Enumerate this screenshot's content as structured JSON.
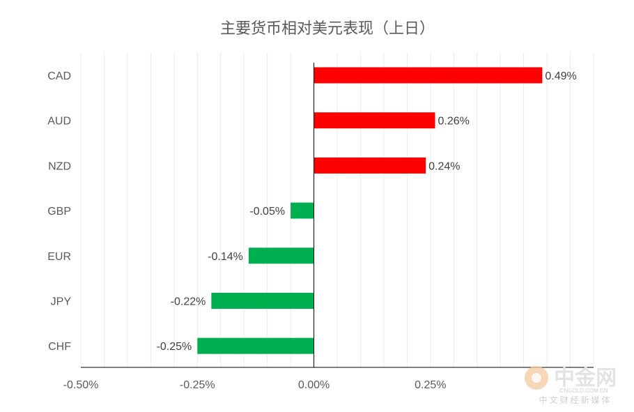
{
  "chart_data": {
    "type": "bar",
    "orientation": "horizontal",
    "title": "主要货币相对美元表现（上日）",
    "categories": [
      "CAD",
      "AUD",
      "NZD",
      "GBP",
      "EUR",
      "JPY",
      "CHF"
    ],
    "values": [
      0.49,
      0.26,
      0.24,
      -0.05,
      -0.14,
      -0.22,
      -0.25
    ],
    "data_labels": [
      "0.49%",
      "0.26%",
      "0.24%",
      "-0.05%",
      "-0.14%",
      "-0.22%",
      "-0.25%"
    ],
    "xlim": [
      -0.5,
      0.6
    ],
    "x_ticks": [
      -0.5,
      -0.25,
      0,
      0.25
    ],
    "x_tick_labels": [
      "-0.50%",
      "-0.25%",
      "0.00%",
      "0.25%"
    ],
    "xlabel": "",
    "ylabel": "",
    "grid": "vertical",
    "legend": "none",
    "colors": {
      "positive": "#ff0000",
      "negative": "#00b050"
    }
  },
  "watermark": {
    "brand": "中金网",
    "url": "CNGOLD.COM.CN",
    "subtitle": "中文财经新媒体"
  }
}
